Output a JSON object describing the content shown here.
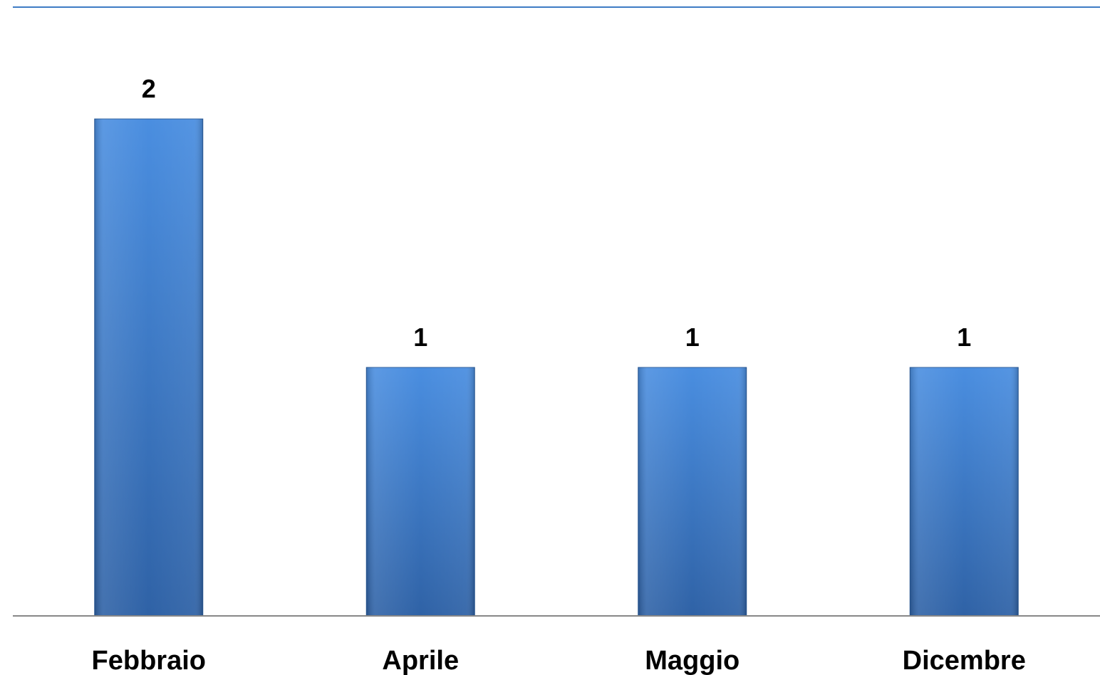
{
  "colors": {
    "bar_light": "#4a8ee0",
    "bar_dark": "#2f62a6",
    "bar_edge": "#2a5c9c",
    "top_rule": "#3f7cc4",
    "axis_line": "#888888"
  },
  "chart_data": {
    "type": "bar",
    "categories": [
      "Febbraio",
      "Aprile",
      "Maggio",
      "Dicembre"
    ],
    "values": [
      2,
      1,
      1,
      1
    ],
    "data_labels": [
      "2",
      "1",
      "1",
      "1"
    ],
    "ylim": [
      0,
      2.45
    ],
    "grid": false,
    "legend": "none"
  }
}
